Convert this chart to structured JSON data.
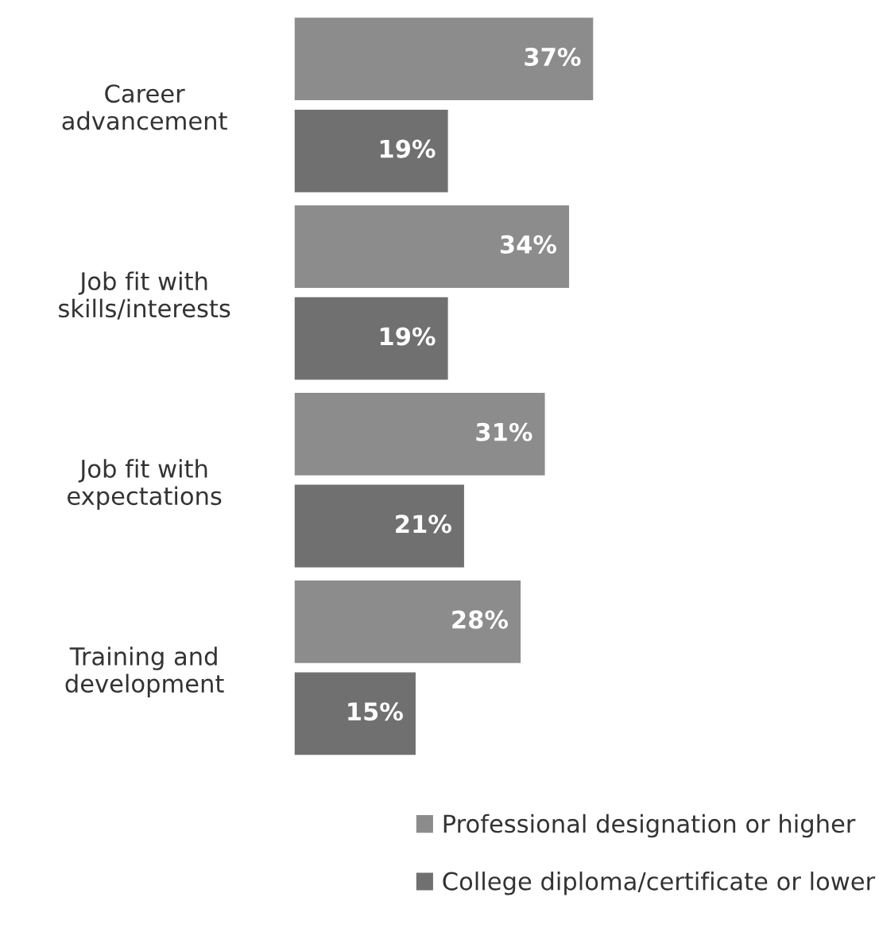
{
  "chart_data": {
    "type": "bar",
    "orientation": "horizontal",
    "categories": [
      "Career\nadvancement",
      "Job fit with\nskills/interests",
      "Job fit with\nexpectations",
      "Training and\ndevelopment"
    ],
    "series": [
      {
        "name": "Professional designation or higher",
        "color": "#8c8c8c",
        "values": [
          37,
          34,
          31,
          28
        ],
        "value_labels": [
          "37%",
          "34%",
          "31%",
          "28%"
        ]
      },
      {
        "name": "College diploma/certificate or lower",
        "color": "#707070",
        "values": [
          19,
          19,
          21,
          15
        ],
        "value_labels": [
          "19%",
          "19%",
          "21%",
          "15%"
        ]
      }
    ],
    "legend": "bottom"
  }
}
